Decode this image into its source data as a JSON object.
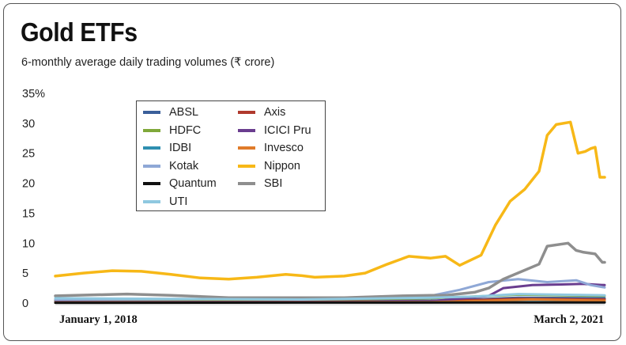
{
  "title": "Gold ETFs",
  "subtitle": "6-monthly average daily trading volumes (₹ crore)",
  "chart_data": {
    "type": "line",
    "title": "Gold ETFs",
    "subtitle": "6-monthly average daily trading volumes (₹ crore)",
    "xlabel": "",
    "ylabel": "",
    "x_start_label": "January 1, 2018",
    "x_end_label": "March 2, 2021",
    "x_range": [
      "2018-01-01",
      "2021-03-02"
    ],
    "ylim": [
      0,
      35
    ],
    "y_ticks": [
      {
        "value": 35,
        "label": "35%"
      },
      {
        "value": 30,
        "label": "30"
      },
      {
        "value": 25,
        "label": "25"
      },
      {
        "value": 20,
        "label": "20"
      },
      {
        "value": 15,
        "label": "15"
      },
      {
        "value": 10,
        "label": "10"
      },
      {
        "value": 5,
        "label": "5"
      },
      {
        "value": 0,
        "label": "0"
      }
    ],
    "grid": false,
    "legend_position": "top-left",
    "series": [
      {
        "name": "ABSL",
        "color": "#3b5f9a",
        "points": [
          [
            "2018-01-01",
            0.3
          ],
          [
            "2019-06-01",
            0.3
          ],
          [
            "2020-03-01",
            0.4
          ],
          [
            "2020-06-01",
            0.6
          ],
          [
            "2020-09-01",
            0.9
          ],
          [
            "2021-03-02",
            0.8
          ]
        ]
      },
      {
        "name": "Axis",
        "color": "#b03a2e",
        "points": [
          [
            "2018-01-01",
            0.2
          ],
          [
            "2019-06-01",
            0.2
          ],
          [
            "2020-03-01",
            0.3
          ],
          [
            "2020-06-01",
            0.5
          ],
          [
            "2020-09-01",
            0.7
          ],
          [
            "2021-03-02",
            0.6
          ]
        ]
      },
      {
        "name": "HDFC",
        "color": "#7fa83a",
        "points": [
          [
            "2018-01-01",
            0.5
          ],
          [
            "2019-06-01",
            0.5
          ],
          [
            "2020-03-01",
            0.8
          ],
          [
            "2020-06-01",
            1.1
          ],
          [
            "2020-09-01",
            1.4
          ],
          [
            "2021-03-02",
            1.2
          ]
        ]
      },
      {
        "name": "ICICI Pru",
        "color": "#6a3d8f",
        "points": [
          [
            "2018-01-01",
            0.2
          ],
          [
            "2019-06-01",
            0.2
          ],
          [
            "2020-03-01",
            0.3
          ],
          [
            "2020-07-01",
            1.2
          ],
          [
            "2020-08-01",
            2.5
          ],
          [
            "2020-10-01",
            3.0
          ],
          [
            "2020-12-01",
            3.1
          ],
          [
            "2021-01-15",
            3.2
          ],
          [
            "2021-03-02",
            3.0
          ]
        ]
      },
      {
        "name": "IDBI",
        "color": "#2e8fb0",
        "points": [
          [
            "2018-01-01",
            0.1
          ],
          [
            "2020-06-01",
            0.15
          ],
          [
            "2021-03-02",
            0.2
          ]
        ]
      },
      {
        "name": "Invesco",
        "color": "#e07b2a",
        "points": [
          [
            "2018-01-01",
            0.1
          ],
          [
            "2020-03-01",
            0.15
          ],
          [
            "2020-07-01",
            0.4
          ],
          [
            "2020-10-01",
            0.6
          ],
          [
            "2021-03-02",
            0.4
          ]
        ]
      },
      {
        "name": "Kotak",
        "color": "#8fa8d6",
        "points": [
          [
            "2018-01-01",
            0.6
          ],
          [
            "2019-06-01",
            0.7
          ],
          [
            "2020-01-01",
            0.9
          ],
          [
            "2020-03-01",
            1.2
          ],
          [
            "2020-05-01",
            2.2
          ],
          [
            "2020-07-01",
            3.5
          ],
          [
            "2020-09-01",
            4.0
          ],
          [
            "2020-11-01",
            3.5
          ],
          [
            "2021-01-01",
            3.8
          ],
          [
            "2021-02-01",
            3.0
          ],
          [
            "2021-03-02",
            2.6
          ]
        ]
      },
      {
        "name": "Nippon",
        "color": "#f7b817",
        "points": [
          [
            "2018-01-01",
            4.5
          ],
          [
            "2018-03-01",
            5.0
          ],
          [
            "2018-05-01",
            5.4
          ],
          [
            "2018-07-01",
            5.3
          ],
          [
            "2018-09-01",
            4.8
          ],
          [
            "2018-11-01",
            4.2
          ],
          [
            "2019-01-01",
            4.0
          ],
          [
            "2019-03-01",
            4.3
          ],
          [
            "2019-05-01",
            4.8
          ],
          [
            "2019-06-01",
            4.6
          ],
          [
            "2019-07-01",
            4.3
          ],
          [
            "2019-09-01",
            4.5
          ],
          [
            "2019-10-15",
            5.0
          ],
          [
            "2019-12-01",
            6.5
          ],
          [
            "2020-01-15",
            7.8
          ],
          [
            "2020-03-01",
            7.5
          ],
          [
            "2020-04-01",
            7.8
          ],
          [
            "2020-05-01",
            6.3
          ],
          [
            "2020-06-15",
            8.0
          ],
          [
            "2020-07-15",
            13.0
          ],
          [
            "2020-08-15",
            17.0
          ],
          [
            "2020-09-15",
            19.0
          ],
          [
            "2020-10-15",
            22.0
          ],
          [
            "2020-11-01",
            28.0
          ],
          [
            "2020-11-20",
            29.8
          ],
          [
            "2020-12-20",
            30.2
          ],
          [
            "2021-01-05",
            25.0
          ],
          [
            "2021-01-20",
            25.3
          ],
          [
            "2021-02-01",
            25.8
          ],
          [
            "2021-02-10",
            26.0
          ],
          [
            "2021-02-20",
            21.0
          ],
          [
            "2021-03-02",
            21.0
          ]
        ]
      },
      {
        "name": "Quantum",
        "color": "#111111",
        "points": [
          [
            "2018-01-01",
            0.05
          ],
          [
            "2021-03-02",
            0.1
          ]
        ]
      },
      {
        "name": "SBI",
        "color": "#8e8e8e",
        "points": [
          [
            "2018-01-01",
            1.2
          ],
          [
            "2018-06-01",
            1.5
          ],
          [
            "2018-09-01",
            1.3
          ],
          [
            "2019-01-01",
            0.9
          ],
          [
            "2019-06-01",
            0.9
          ],
          [
            "2019-09-01",
            0.9
          ],
          [
            "2020-01-01",
            1.2
          ],
          [
            "2020-03-01",
            1.3
          ],
          [
            "2020-04-01",
            1.3
          ],
          [
            "2020-06-01",
            1.8
          ],
          [
            "2020-07-01",
            2.5
          ],
          [
            "2020-08-01",
            4.0
          ],
          [
            "2020-09-15",
            5.5
          ],
          [
            "2020-10-15",
            6.5
          ],
          [
            "2020-11-01",
            9.5
          ],
          [
            "2020-12-15",
            10.0
          ],
          [
            "2021-01-01",
            8.8
          ],
          [
            "2021-01-15",
            8.5
          ],
          [
            "2021-02-10",
            8.2
          ],
          [
            "2021-02-25",
            6.8
          ],
          [
            "2021-03-02",
            6.8
          ]
        ]
      },
      {
        "name": "UTI",
        "color": "#8fc8e0",
        "points": [
          [
            "2018-01-01",
            0.8
          ],
          [
            "2019-06-01",
            0.6
          ],
          [
            "2020-03-01",
            0.9
          ],
          [
            "2020-06-01",
            1.1
          ],
          [
            "2020-09-01",
            1.5
          ],
          [
            "2021-03-02",
            1.3
          ]
        ]
      }
    ]
  }
}
